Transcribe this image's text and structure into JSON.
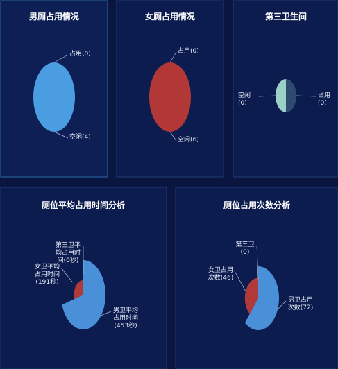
{
  "chart_data": [
    {
      "type": "pie",
      "title": "男厕占用情况",
      "categories": [
        "占用",
        "空闲"
      ],
      "values": [
        0,
        4
      ],
      "value_labels": [
        "(0)",
        "(4)"
      ],
      "colors": [
        "#6bb6f0",
        "#4a9de0"
      ]
    },
    {
      "type": "pie",
      "title": "女厕占用情况",
      "categories": [
        "占用",
        "空闲"
      ],
      "values": [
        0,
        6
      ],
      "value_labels": [
        "(0)",
        "(6)"
      ],
      "colors": [
        "#e05a5a",
        "#b23838"
      ]
    },
    {
      "type": "pie",
      "title": "第三卫生间",
      "categories": [
        "占用",
        "空闲"
      ],
      "values": [
        0,
        0
      ],
      "value_labels": [
        "(0)",
        "(0)"
      ],
      "colors": [
        "#2e4a6e",
        "#9ccfc6"
      ]
    },
    {
      "type": "rose",
      "title": "厕位平均占用时间分析",
      "categories": [
        "男卫平均占用时间",
        "女卫平均占用时间",
        "第三卫平均占用时间"
      ],
      "values": [
        453,
        191,
        0
      ],
      "value_labels": [
        "(453秒)",
        "(191秒)",
        "(0秒)"
      ],
      "colors": [
        "#4a90d9",
        "#b03a3a",
        "#e0c050"
      ]
    },
    {
      "type": "rose",
      "title": "厕位占用次数分析",
      "categories": [
        "男卫占用次数",
        "女卫占用次数",
        "第三卫"
      ],
      "values": [
        72,
        46,
        0
      ],
      "value_labels": [
        "(72)",
        "(46)",
        "(0)"
      ],
      "colors": [
        "#4a90d9",
        "#b03a3a",
        "#e0c050"
      ]
    }
  ]
}
